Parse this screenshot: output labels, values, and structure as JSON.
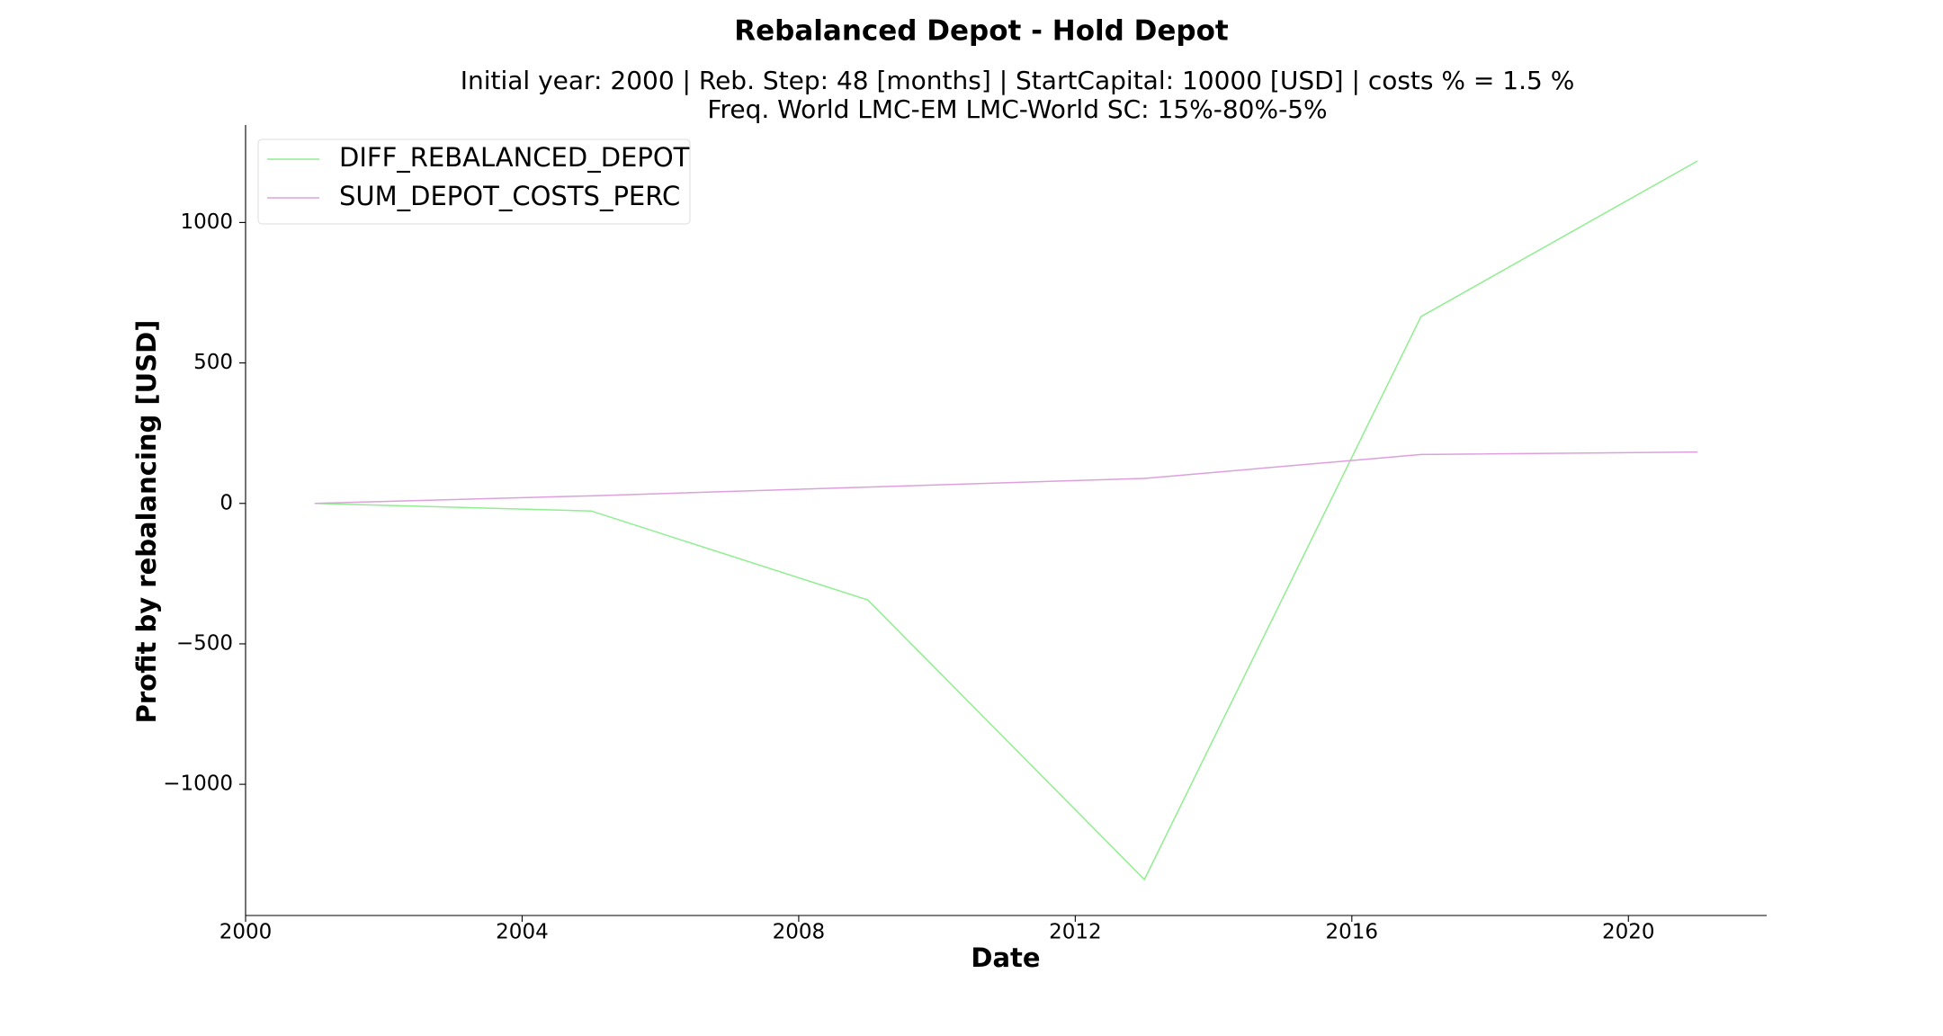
{
  "chart_data": {
    "type": "line",
    "title": "Rebalanced Depot - Hold Depot",
    "subtitle": [
      "Initial year: 2000 | Reb. Step: 48 [months] | StartCapital: 10000 [USD] | costs % = 1.5 %",
      "Freq. World LMC-EM LMC-World SC: 15%-80%-5%"
    ],
    "xlabel": "Date",
    "ylabel": "Profit by rebalancing [USD]",
    "x": [
      2001,
      2005,
      2009,
      2013,
      2017,
      2021
    ],
    "series": [
      {
        "name": "DIFF_REBALANCED_DEPOT",
        "color": "#90ee90",
        "values": [
          0,
          -27,
          -344,
          -1339,
          665,
          1219
        ]
      },
      {
        "name": "SUM_DEPOT_COSTS_PERC",
        "color": "#dda0dd",
        "values": [
          0,
          27,
          58,
          89,
          174,
          183
        ]
      }
    ],
    "xlim": [
      2000,
      2022
    ],
    "xticks": [
      2000,
      2004,
      2008,
      2012,
      2016,
      2020
    ],
    "ylim": [
      -1467,
      1347
    ],
    "yticks": [
      {
        "value": -1000,
        "label": "−1000"
      },
      {
        "value": -500,
        "label": "−500"
      },
      0,
      500,
      1000
    ],
    "grid": false,
    "legend": "upper left"
  }
}
